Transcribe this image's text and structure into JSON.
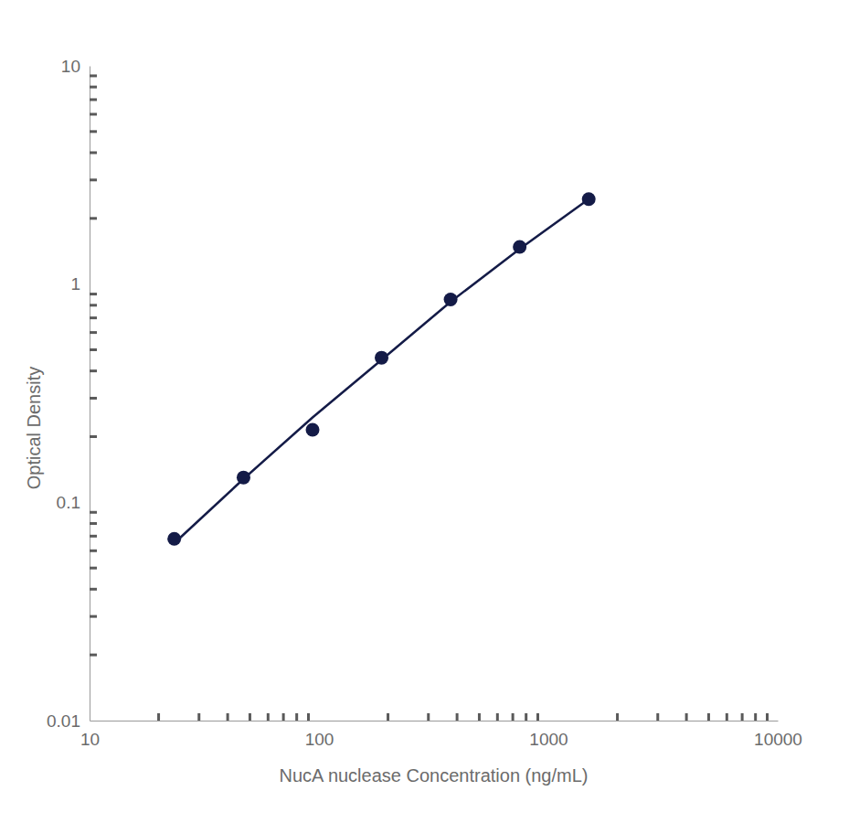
{
  "chart_data": {
    "type": "scatter",
    "x_label": "NucA nuclease Concentration (ng/mL)",
    "y_label": "Optical Density",
    "log": true,
    "grid": false,
    "xlim": [
      10,
      10000
    ],
    "xticks": [
      10,
      100,
      1000,
      10000
    ],
    "xminor": [
      20,
      30,
      40,
      50,
      60,
      70,
      80,
      90,
      200,
      300,
      400,
      500,
      600,
      700,
      800,
      900,
      2000,
      3000,
      4000,
      5000,
      6000,
      7000,
      8000,
      9000
    ],
    "ylim": [
      0.01,
      10
    ],
    "yticks": [
      0.01,
      0.1,
      1,
      10
    ],
    "yminor": [
      0.02,
      0.03,
      0.04,
      0.05,
      0.06,
      0.07,
      0.08,
      0.09,
      0.2,
      0.3,
      0.4,
      0.5,
      0.6,
      0.7,
      0.8,
      0.9,
      2,
      3,
      4,
      5,
      6,
      7,
      8,
      9
    ],
    "series": [
      {
        "type": "scatter",
        "marker": "circle",
        "color": "#141b47",
        "x": [
          23.4,
          46.9,
          93.8,
          187.5,
          375,
          750,
          1500
        ],
        "values": [
          0.068,
          0.13,
          0.215,
          0.46,
          0.85,
          1.48,
          2.45
        ]
      },
      {
        "type": "line",
        "line_style": "solid",
        "color": "#141b47",
        "x": [
          23.4,
          46.9,
          93.8,
          187.5,
          375,
          750,
          1500
        ],
        "values": [
          0.065,
          0.128,
          0.245,
          0.45,
          0.83,
          1.45,
          2.45
        ]
      }
    ]
  }
}
